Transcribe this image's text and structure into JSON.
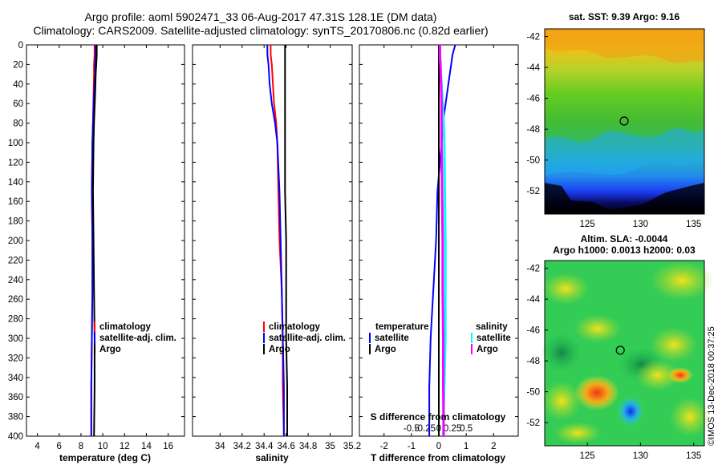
{
  "header": {
    "line1": "Argo profile: aoml 5902471_33 06-Aug-2017 47.31S 128.1E (DM data)",
    "line2": "Climatology: CARS2009. Satellite-adjusted climatology: synTS_20170806.nc (0.82d earlier)"
  },
  "depth_axis": {
    "ticks": [
      0,
      20,
      40,
      60,
      80,
      100,
      120,
      140,
      160,
      180,
      200,
      220,
      240,
      260,
      280,
      300,
      320,
      340,
      360,
      380,
      400
    ],
    "labels": [
      "0",
      "20",
      "40",
      "60",
      "80",
      "100",
      "120",
      "140",
      "160",
      "180",
      "200",
      "220",
      "240",
      "260",
      "280",
      "300",
      "320",
      "340",
      "360",
      "380",
      "400"
    ]
  },
  "colors": {
    "climatology": "#ff0000",
    "satellite": "#0000ff",
    "argo": "#000000",
    "satellite_s": "#00ffff",
    "argo_s": "#ff00ff"
  },
  "chart_data": [
    {
      "type": "line",
      "id": "temperature",
      "xlabel": "temperature (deg C)",
      "ylabel": "depth",
      "xlim": [
        3,
        17.5
      ],
      "ylim": [
        400,
        0
      ],
      "xticks": [
        4,
        6,
        8,
        10,
        12,
        14,
        16
      ],
      "xticklabels": [
        "4",
        "6",
        "8",
        "10",
        "12",
        "14",
        "16"
      ],
      "legend": [
        "climatology",
        "satellite-adj. clim.",
        "Argo"
      ],
      "depth": [
        0,
        10,
        20,
        30,
        50,
        80,
        100,
        150,
        200,
        250,
        300,
        350,
        400
      ],
      "series": [
        {
          "name": "climatology",
          "values": [
            9.25,
            9.25,
            9.2,
            9.2,
            9.15,
            9.1,
            9.05,
            9.0,
            9.05,
            9.05,
            9.0,
            8.95,
            8.95
          ]
        },
        {
          "name": "satellite-adj. clim.",
          "values": [
            9.35,
            9.35,
            9.3,
            9.3,
            9.2,
            9.1,
            9.05,
            9.0,
            9.05,
            9.05,
            9.0,
            8.95,
            8.95
          ]
        },
        {
          "name": "Argo",
          "values": [
            9.45,
            9.45,
            9.4,
            9.35,
            9.3,
            9.2,
            9.15,
            9.1,
            9.15,
            9.2,
            9.25,
            9.25,
            9.2
          ]
        }
      ]
    },
    {
      "type": "line",
      "id": "salinity",
      "xlabel": "salinity",
      "ylabel": "depth",
      "xlim": [
        33.75,
        35.2
      ],
      "ylim": [
        400,
        0
      ],
      "xticks": [
        34,
        34.2,
        34.4,
        34.6,
        34.8,
        35,
        35.2
      ],
      "xticklabels": [
        "34",
        "34.2",
        "34.4",
        "34.6",
        "34.8",
        "35",
        "35.2"
      ],
      "legend": [
        "climatology",
        "satellite-adj. clim.",
        "Argo"
      ],
      "depth": [
        0,
        10,
        20,
        40,
        60,
        80,
        100,
        150,
        200,
        250,
        300,
        350,
        400
      ],
      "series": [
        {
          "name": "climatology",
          "values": [
            34.46,
            34.46,
            34.47,
            34.48,
            34.49,
            34.51,
            34.52,
            34.53,
            34.54,
            34.56,
            34.57,
            34.57,
            34.58
          ]
        },
        {
          "name": "satellite-adj. clim.",
          "values": [
            34.43,
            34.43,
            34.44,
            34.45,
            34.47,
            34.5,
            34.52,
            34.54,
            34.55,
            34.56,
            34.57,
            34.58,
            34.58
          ]
        },
        {
          "name": "Argo",
          "values": [
            34.59,
            34.59,
            34.59,
            34.59,
            34.59,
            34.59,
            34.59,
            34.59,
            34.6,
            34.6,
            34.6,
            34.61,
            34.61
          ]
        }
      ]
    },
    {
      "type": "line",
      "id": "difference",
      "xlabel": "T difference from climatology",
      "secondary_xlabel": "S difference from climatology",
      "ylabel": "depth",
      "xlim": [
        -2.9,
        2.9
      ],
      "ylim": [
        400,
        0
      ],
      "xticks": [
        -2,
        -1,
        0,
        1,
        2
      ],
      "xticklabels": [
        "-2",
        "-1",
        "0",
        "1",
        "2"
      ],
      "s_xticklabels": [
        "-0.5",
        "-0.25",
        "0",
        "0.25",
        "0.5"
      ],
      "legend_t_title": "temperature",
      "legend_s_title": "salinity",
      "legend": [
        "satellite",
        "Argo",
        "satellite",
        "Argo"
      ],
      "depth": [
        0,
        10,
        20,
        40,
        60,
        80,
        100,
        150,
        200,
        250,
        300,
        350,
        400
      ],
      "series": [
        {
          "name": "T satellite",
          "values": [
            0.6,
            0.5,
            0.45,
            0.35,
            0.25,
            0.15,
            0.1,
            -0.05,
            -0.1,
            -0.2,
            -0.3,
            -0.35,
            -0.35
          ]
        },
        {
          "name": "T Argo",
          "values": [
            0,
            0,
            0,
            0,
            0,
            0,
            0,
            0,
            0,
            0,
            0,
            0,
            0
          ]
        },
        {
          "name": "S satellite",
          "values": [
            0.02,
            0.02,
            0.03,
            0.05,
            0.07,
            0.09,
            0.1,
            0.11,
            0.12,
            0.12,
            0.12,
            0.1,
            0.08
          ]
        },
        {
          "name": "S Argo",
          "values": [
            0.02,
            0.02,
            0.03,
            0.04,
            0.05,
            0.05,
            0.05,
            0.06,
            0.07,
            0.07,
            0.08,
            0.08,
            0.09
          ]
        }
      ]
    }
  ],
  "maps": {
    "sst": {
      "title": "sat. SST: 9.39 Argo: 9.16",
      "yticklabels": [
        "-42",
        "-44",
        "-46",
        "-48",
        "-50",
        "-52"
      ],
      "xticklabels": [
        "125",
        "130",
        "135"
      ]
    },
    "sla": {
      "title1": "Altim. SLA: -0.0044",
      "title2": "Argo h1000: 0.0013 h2000: 0.03",
      "yticklabels": [
        "-42",
        "-44",
        "-46",
        "-48",
        "-50",
        "-52"
      ],
      "xticklabels": [
        "125",
        "130",
        "135"
      ],
      "lat_values": [
        -42,
        -44,
        -46,
        -48,
        -50,
        -52
      ],
      "lon_values": [
        125,
        130,
        135
      ],
      "argo_lat": -47.31,
      "argo_lon": 128.1
    },
    "credit": "©IMOS 13-Dec-2018 00:37:25"
  }
}
